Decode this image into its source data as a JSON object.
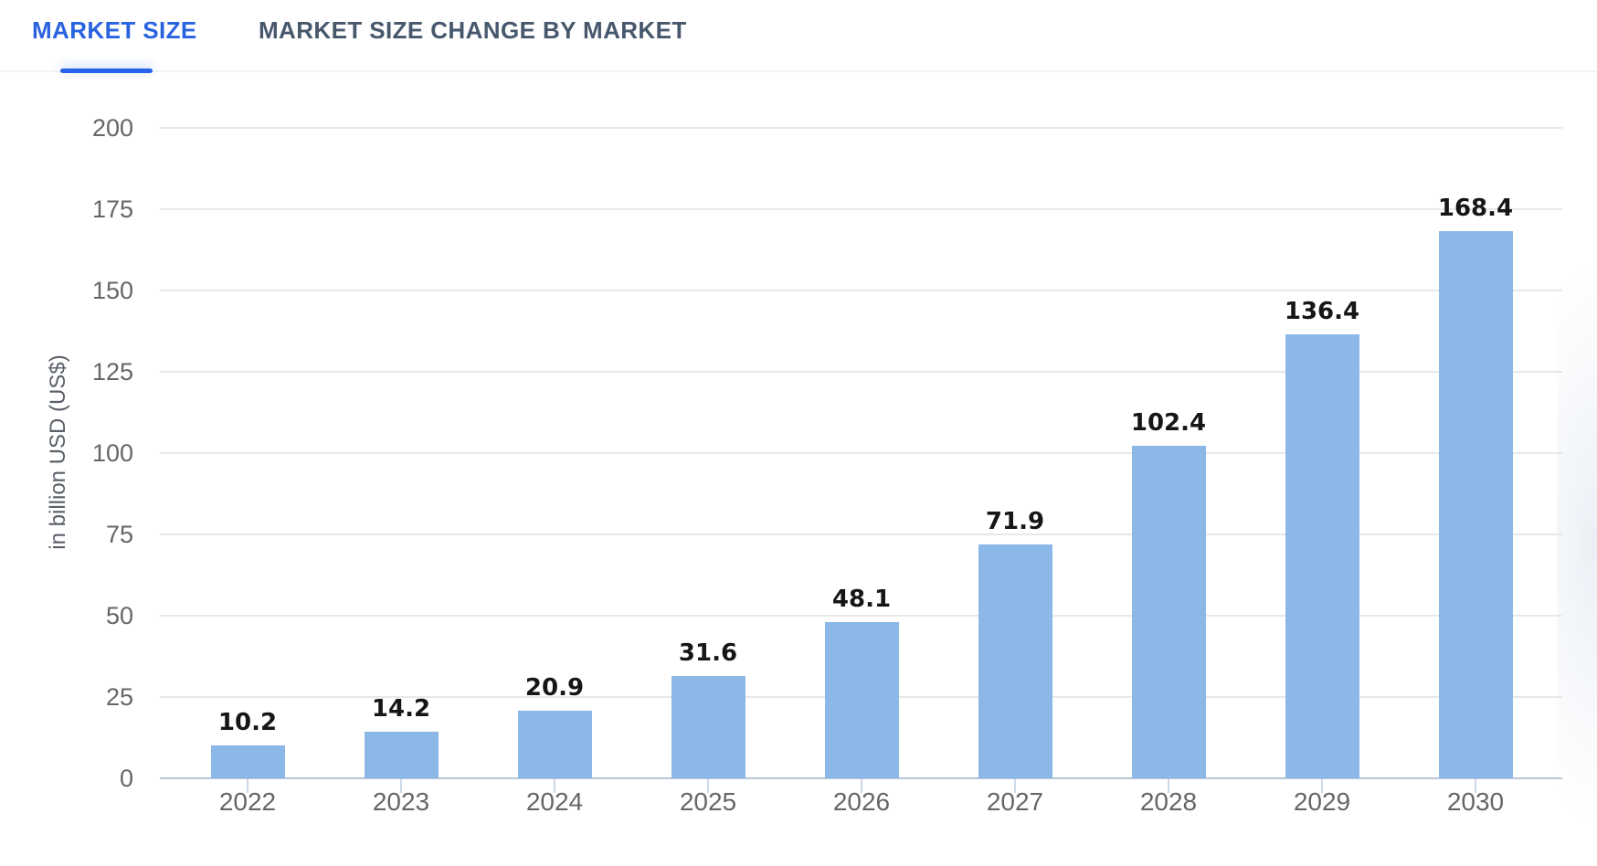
{
  "tabs": [
    {
      "label": "MARKET SIZE",
      "active": true
    },
    {
      "label": "MARKET SIZE CHANGE BY MARKET",
      "active": false
    }
  ],
  "chart_data": {
    "type": "bar",
    "categories": [
      "2022",
      "2023",
      "2024",
      "2025",
      "2026",
      "2027",
      "2028",
      "2029",
      "2030"
    ],
    "values": [
      10.2,
      14.2,
      20.9,
      31.6,
      48.1,
      71.9,
      102.4,
      136.4,
      168.4
    ],
    "ylabel": "in billion USD (US$)",
    "ylim": [
      0,
      200
    ],
    "ytick_step": 25,
    "grid": true,
    "data_labels": true,
    "legend": false
  },
  "colors": {
    "accent": "#2a63e0",
    "tab_indicator": "#2563e8",
    "inactive_tab": "#47586d",
    "separator": "#f0f3f7",
    "bar_fill": "#8cb8e7",
    "gridline": "#e8e8e8",
    "axis_line": "#b8c6da",
    "axis_tick": "#ccd9ea",
    "tick_label": "#666666",
    "value_label": "#161616",
    "axis_title": "#5a6068"
  }
}
